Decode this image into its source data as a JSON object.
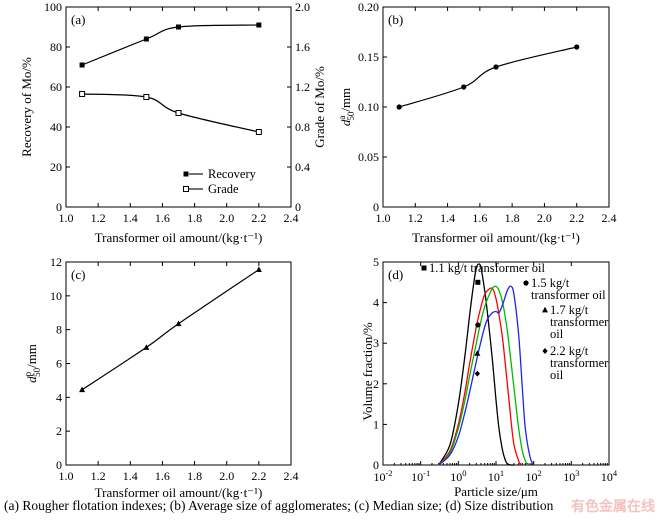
{
  "caption": "(a) Rougher flotation indexes; (b) Average size of agglomerates; (c) Median size; (d) Size distribution",
  "watermark": "有色金属在线",
  "chart_data": [
    {
      "panel": "(a)",
      "type": "line",
      "xlabel": "Transformer oil amount/(kg·t⁻¹)",
      "ylabel": "Recovery of Mo/%",
      "y2label": "Grade of Mo/%",
      "xlim": [
        1.0,
        2.4
      ],
      "ylim": [
        0,
        100
      ],
      "y2lim": [
        0,
        2.0
      ],
      "xticks": [
        "1.0",
        "1.2",
        "1.4",
        "1.6",
        "1.8",
        "2.0",
        "2.2",
        "2.4"
      ],
      "yticks": [
        "0",
        "20",
        "40",
        "60",
        "80",
        "100"
      ],
      "y2ticks": [
        "0",
        "0.4",
        "0.8",
        "1.2",
        "1.6",
        "2.0"
      ],
      "legend_position": "bottom-right",
      "series": [
        {
          "name": "Recovery",
          "axis": "left",
          "marker": "filled-square",
          "x": [
            1.1,
            1.5,
            1.7,
            2.2
          ],
          "values": [
            71,
            84,
            90,
            91
          ]
        },
        {
          "name": "Grade",
          "axis": "right",
          "marker": "open-square",
          "x": [
            1.1,
            1.5,
            1.7,
            2.2
          ],
          "values": [
            1.13,
            1.1,
            0.94,
            0.75
          ]
        }
      ]
    },
    {
      "panel": "(b)",
      "type": "line",
      "xlabel": "Transformer oil amount/(kg·t⁻¹)",
      "ylabel_main": "d",
      "ylabel_sup": "a",
      "ylabel_sub": "50",
      "ylabel_tail": "/mm",
      "xlim": [
        1.0,
        2.4
      ],
      "ylim": [
        0,
        0.2
      ],
      "xticks": [
        "1.0",
        "1.2",
        "1.4",
        "1.6",
        "1.8",
        "2.0",
        "2.2",
        "2.4"
      ],
      "yticks": [
        "0",
        "0.05",
        "0.10",
        "0.15",
        "0.20"
      ],
      "series": [
        {
          "marker": "filled-circle",
          "x": [
            1.1,
            1.5,
            1.7,
            2.2
          ],
          "values": [
            0.1,
            0.12,
            0.14,
            0.16
          ]
        }
      ]
    },
    {
      "panel": "(c)",
      "type": "line",
      "xlabel": "Transformer oil amount/(kg·t⁻¹)",
      "ylabel_main": "d",
      "ylabel_sup": "p",
      "ylabel_sub": "50",
      "ylabel_tail": "/mm",
      "xlim": [
        1.0,
        2.4
      ],
      "ylim": [
        0,
        12
      ],
      "xticks": [
        "1.0",
        "1.2",
        "1.4",
        "1.6",
        "1.8",
        "2.0",
        "2.2",
        "2.4"
      ],
      "yticks": [
        "0",
        "2",
        "4",
        "6",
        "8",
        "10",
        "12"
      ],
      "series": [
        {
          "marker": "filled-triangle",
          "x": [
            1.1,
            1.5,
            1.7,
            2.2
          ],
          "values": [
            4.45,
            6.95,
            8.35,
            11.55
          ]
        }
      ]
    },
    {
      "panel": "(d)",
      "type": "line",
      "xlabel": "Particle size/μm",
      "ylabel": "Volume fraction/%",
      "xscale": "log",
      "xlim": [
        0.01,
        10000
      ],
      "ylim": [
        0,
        5
      ],
      "xtick_exponents": [
        "-2",
        "-1",
        "0",
        "1",
        "2",
        "3",
        "4"
      ],
      "yticks": [
        "0",
        "1",
        "2",
        "3",
        "4",
        "5"
      ],
      "series": [
        {
          "name": "1.1 kg/t transformer oil",
          "legend_lines": [
            "1.1 kg/t transformer oil"
          ],
          "color": "#000000",
          "marker": "filled-square",
          "x": [
            0.3,
            0.6,
            1,
            1.5,
            2,
            2.5,
            3,
            3.5,
            4,
            5,
            6,
            8,
            10,
            12,
            15,
            18,
            20,
            25,
            30
          ],
          "values": [
            0,
            0.5,
            1.5,
            2.7,
            3.7,
            4.4,
            4.85,
            4.95,
            4.85,
            4.3,
            3.7,
            2.6,
            1.6,
            0.9,
            0.35,
            0.1,
            0.03,
            0,
            0
          ]
        },
        {
          "name": "1.5 kg/t transformer oil",
          "legend_lines": [
            "1.5 kg/t",
            "transformer oil"
          ],
          "color": "#ff0000",
          "marker": "filled-circle",
          "x": [
            0.3,
            0.6,
            1,
            1.5,
            2,
            3,
            4,
            5,
            6,
            8,
            10,
            12,
            15,
            20,
            25,
            30,
            40,
            45,
            50
          ],
          "values": [
            0,
            0.35,
            1.0,
            1.8,
            2.5,
            3.4,
            3.9,
            4.2,
            4.3,
            4.35,
            4.1,
            3.7,
            3.1,
            2.0,
            1.1,
            0.5,
            0.1,
            0.03,
            0
          ]
        },
        {
          "name": "1.7 kg/t transformer oil",
          "legend_lines": [
            "1.7 kg/t",
            "transformer",
            "oil"
          ],
          "color": "#00bb00",
          "marker": "filled-triangle",
          "x": [
            0.3,
            0.6,
            1,
            1.5,
            2,
            3,
            4,
            5,
            6,
            8,
            10,
            12,
            15,
            20,
            30,
            40,
            50,
            60,
            70
          ],
          "values": [
            0,
            0.3,
            0.9,
            1.6,
            2.2,
            3.0,
            3.55,
            3.9,
            4.1,
            4.35,
            4.4,
            4.3,
            4.0,
            3.3,
            1.9,
            0.9,
            0.35,
            0.1,
            0
          ]
        },
        {
          "name": "2.2 kg/t transformer oil",
          "legend_lines": [
            "2.2 kg/t",
            "transformer",
            "oil"
          ],
          "color": "#2222ee",
          "marker": "filled-diamond",
          "x": [
            0.3,
            0.6,
            1,
            1.5,
            2,
            3,
            4,
            5,
            6,
            8,
            10,
            12,
            15,
            20,
            25,
            30,
            40,
            50,
            60,
            80,
            100
          ],
          "values": [
            0,
            0.25,
            0.7,
            1.3,
            1.8,
            2.55,
            3.05,
            3.4,
            3.6,
            3.75,
            3.78,
            3.75,
            3.95,
            4.3,
            4.4,
            4.2,
            3.2,
            1.9,
            0.9,
            0.2,
            0
          ]
        }
      ]
    }
  ]
}
